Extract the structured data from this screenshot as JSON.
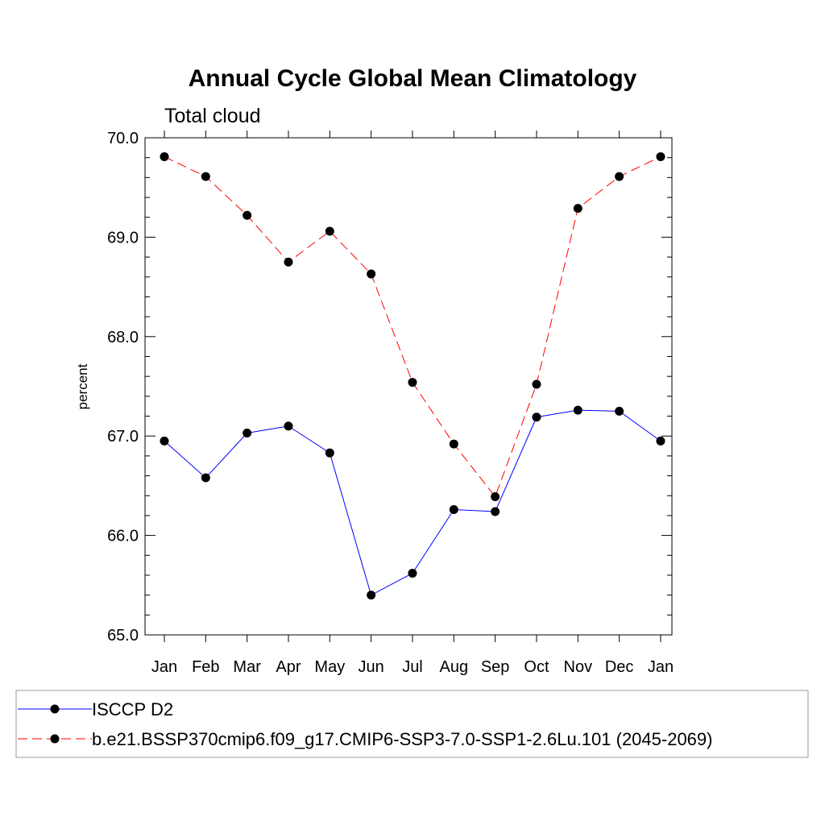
{
  "chart_data": {
    "type": "line",
    "title": "Annual Cycle Global Mean Climatology",
    "subtitle": "Total cloud",
    "xlabel": "",
    "ylabel": "percent",
    "categories": [
      "Jan",
      "Feb",
      "Mar",
      "Apr",
      "May",
      "Jun",
      "Jul",
      "Aug",
      "Sep",
      "Oct",
      "Nov",
      "Dec",
      "Jan"
    ],
    "ylim": [
      65.0,
      70.0
    ],
    "yticks": [
      "65.0",
      "66.0",
      "67.0",
      "68.0",
      "69.0",
      "70.0"
    ],
    "grid": false,
    "legend_position": "bottom",
    "series": [
      {
        "name": "ISCCP D2",
        "color": "#0000ff",
        "dash": "solid",
        "marker": "filled-circle",
        "values": [
          66.95,
          66.58,
          67.03,
          67.1,
          66.83,
          65.4,
          65.62,
          66.26,
          66.24,
          67.19,
          67.26,
          67.25,
          66.95
        ]
      },
      {
        "name": "b.e21.BSSP370cmip6.f09_g17.CMIP6-SSP3-7.0-SSP1-2.6Lu.101 (2045-2069)",
        "color": "#ff0000",
        "dash": "dashed",
        "marker": "filled-circle",
        "values": [
          69.81,
          69.61,
          69.22,
          68.75,
          69.06,
          68.63,
          67.54,
          66.92,
          66.39,
          67.52,
          69.29,
          69.61,
          69.81
        ]
      }
    ]
  }
}
